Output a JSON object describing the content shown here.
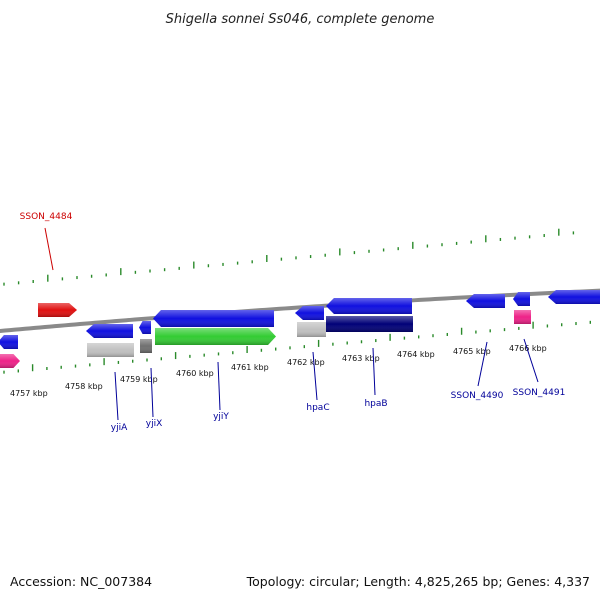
{
  "title": "Shigella sonnei Ss046, complete genome",
  "footer": {
    "accession": "Accession: NC_007384",
    "summary": "Topology: circular; Length: 4,825,265 bp; Genes: 4,337"
  },
  "colors": {
    "backbone": "#8a8a8a",
    "tick_green": "#2a8a2a",
    "blue": "#1010e0",
    "navy": "#000077",
    "red": "#e01010",
    "green": "#33cc33",
    "gray": "#c0c0c0",
    "darkgray": "#707070",
    "pink": "#ee2288",
    "label_blue": "#000099",
    "label_red": "#cc0000"
  },
  "kbp_labels": [
    "4757 kbp",
    "4758 kbp",
    "4759 kbp",
    "4760 kbp",
    "4761 kbp",
    "4762 kbp",
    "4763 kbp",
    "4764 kbp",
    "4765 kbp",
    "4766 kbp"
  ],
  "gene_labels": [
    {
      "text": "SSON_4484",
      "color": "label_red"
    },
    {
      "text": "yjiA",
      "color": "label_blue"
    },
    {
      "text": "yjiX",
      "color": "label_blue"
    },
    {
      "text": "yjiY",
      "color": "label_blue"
    },
    {
      "text": "hpaC",
      "color": "label_blue"
    },
    {
      "text": "hpaB",
      "color": "label_blue"
    },
    {
      "text": "SSON_4490",
      "color": "label_blue"
    },
    {
      "text": "SSON_4491",
      "color": "label_blue"
    }
  ]
}
